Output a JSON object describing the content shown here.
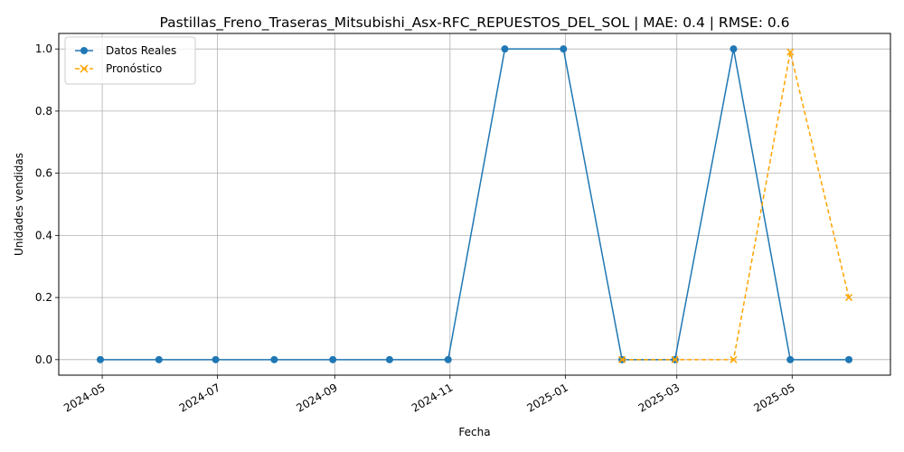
{
  "chart_data": {
    "type": "line",
    "title": "Pastillas_Freno_Traseras_Mitsubishi_Asx-RFC_REPUESTOS_DEL_SOL | MAE: 0.4 | RMSE: 0.6",
    "xlabel": "Fecha",
    "ylabel": "Unidades vendidas",
    "xlim": [
      "2024-04-08",
      "2025-06-22"
    ],
    "ylim": [
      -0.05,
      1.05
    ],
    "grid": true,
    "legend_position": "top-left",
    "x_ticks": [
      "2024-05",
      "2024-07",
      "2024-09",
      "2024-11",
      "2025-01",
      "2025-03",
      "2025-05"
    ],
    "y_ticks": [
      "0.0",
      "0.2",
      "0.4",
      "0.6",
      "0.8",
      "1.0"
    ],
    "series": [
      {
        "name": "Datos Reales",
        "color": "#1f77b4",
        "line_style": "solid",
        "marker": "circle",
        "x": [
          "2024-04-30",
          "2024-05-31",
          "2024-06-30",
          "2024-07-31",
          "2024-08-31",
          "2024-09-30",
          "2024-10-31",
          "2024-11-30",
          "2024-12-31",
          "2025-01-31",
          "2025-02-28",
          "2025-03-31",
          "2025-04-30",
          "2025-05-31"
        ],
        "y": [
          0,
          0,
          0,
          0,
          0,
          0,
          0,
          1,
          1,
          0,
          0,
          1,
          0,
          0
        ]
      },
      {
        "name": "Pronóstico",
        "color": "#ffa500",
        "line_style": "dashed",
        "marker": "x",
        "x": [
          "2025-01-31",
          "2025-02-28",
          "2025-03-31",
          "2025-04-30",
          "2025-05-31"
        ],
        "y": [
          0.0,
          0.0,
          0.0,
          0.99,
          0.2
        ]
      }
    ]
  }
}
